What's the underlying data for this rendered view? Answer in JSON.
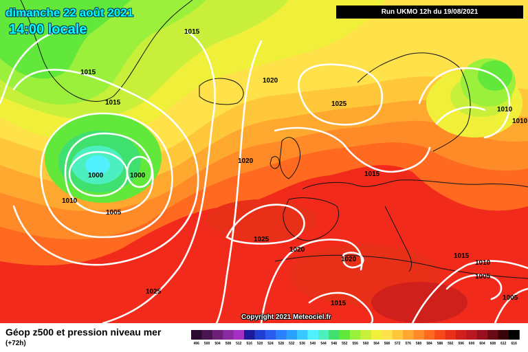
{
  "header": {
    "date": "dimanche 22 août 2021",
    "time": "14:00 locale",
    "run": "Run UKMO 12h du 19/08/2021"
  },
  "map": {
    "copyright": "Copyright 2021 Meteociel.fr",
    "isobar_labels": [
      "1015",
      "1015",
      "1015",
      "1000",
      "1000",
      "1010",
      "1005",
      "1020",
      "1025",
      "1025",
      "1015",
      "1020",
      "1020",
      "1025",
      "1010",
      "1010",
      "1015",
      "1010",
      "1005",
      "1005",
      "1015",
      "1020"
    ]
  },
  "legend": {
    "title": "Géop z500 et pression niveau mer",
    "subtitle": "(+72h)",
    "scale_values": [
      "496",
      "500",
      "504",
      "508",
      "512",
      "516",
      "520",
      "524",
      "528",
      "532",
      "536",
      "540",
      "544",
      "548",
      "552",
      "556",
      "560",
      "564",
      "568",
      "572",
      "576",
      "580",
      "584",
      "588",
      "592",
      "596",
      "600",
      "604",
      "608",
      "612",
      "616"
    ],
    "scale_colors": [
      "#2a0a2e",
      "#4a1450",
      "#6e1f78",
      "#8a2aa0",
      "#a52fc2",
      "#1a1a9a",
      "#1f3fd0",
      "#2a5cf0",
      "#2a80ff",
      "#2aa0ff",
      "#38c8ff",
      "#50f0ff",
      "#4cf0c0",
      "#40e070",
      "#62e83a",
      "#9af03a",
      "#c8f03a",
      "#f0f03a",
      "#ffe14a",
      "#ffc83a",
      "#ffa830",
      "#ff8a28",
      "#ff6a20",
      "#f84a18",
      "#e83018",
      "#d0201c",
      "#b81820",
      "#981020",
      "#6a0a14",
      "#3a0508",
      "#000000"
    ]
  }
}
